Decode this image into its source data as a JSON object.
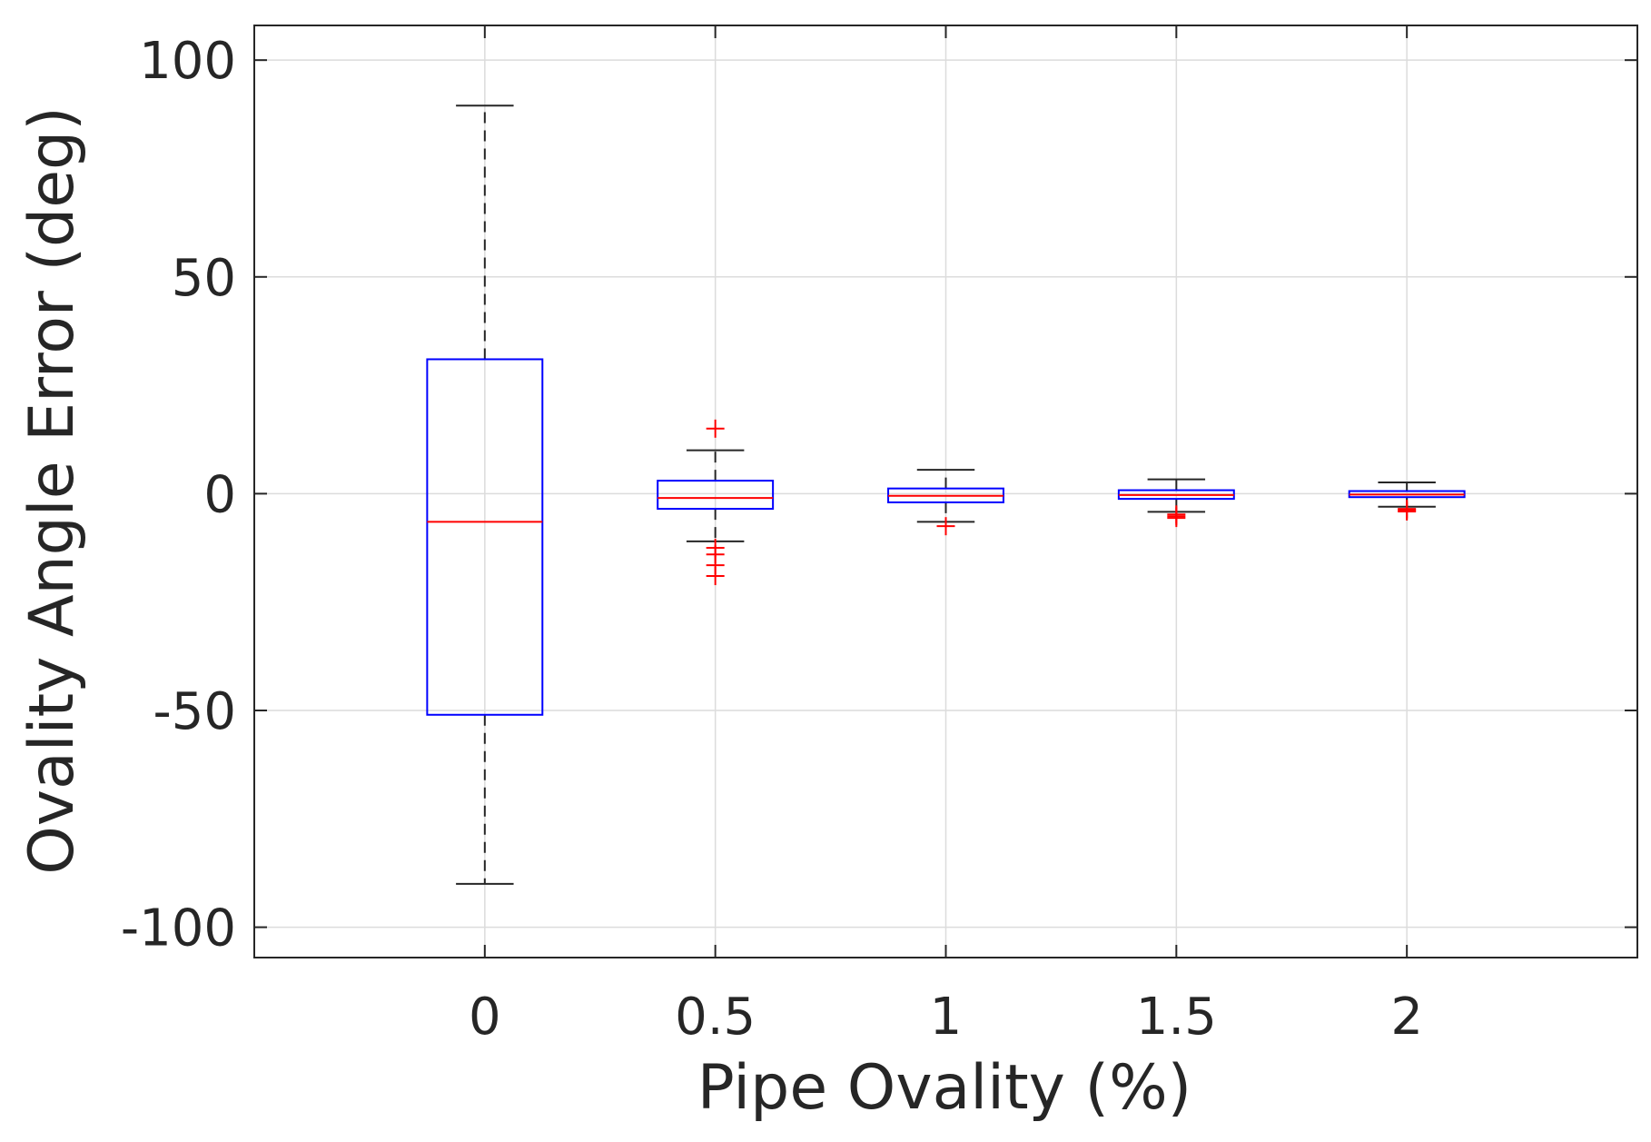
{
  "chart_data": {
    "type": "box",
    "title": "",
    "xlabel": "Pipe Ovality (%)",
    "ylabel": "Ovality Angle Error (deg)",
    "ylim": [
      -107,
      108
    ],
    "yticks": [
      -100,
      -50,
      0,
      50,
      100
    ],
    "ytick_labels": [
      "-100",
      "-50",
      "0",
      "50",
      "100"
    ],
    "grid": true,
    "categories": [
      "0",
      "0.5",
      "1",
      "1.5",
      "2"
    ],
    "boxes": [
      {
        "category": "0",
        "whisker_low": -90,
        "q1": -51,
        "median": -6.5,
        "q3": 31,
        "whisker_high": 89.5,
        "outliers": []
      },
      {
        "category": "0.5",
        "whisker_low": -11,
        "q1": -3.5,
        "median": -1,
        "q3": 3,
        "whisker_high": 10,
        "outliers": [
          15,
          -12.5,
          -14,
          -16.5,
          -19
        ]
      },
      {
        "category": "1",
        "whisker_low": -6.5,
        "q1": -2,
        "median": -0.5,
        "q3": 1.2,
        "whisker_high": 5.5,
        "outliers": [
          -7.5
        ]
      },
      {
        "category": "1.5",
        "whisker_low": -4.2,
        "q1": -1.2,
        "median": -0.3,
        "q3": 0.8,
        "whisker_high": 3.3,
        "outliers": [
          -4.8,
          -5.2,
          -5.6
        ]
      },
      {
        "category": "2",
        "whisker_low": -3,
        "q1": -0.8,
        "median": -0.2,
        "q3": 0.6,
        "whisker_high": 2.6,
        "outliers": [
          -3.5,
          -3.8,
          -4.1
        ]
      }
    ],
    "colors": {
      "box": "#0000ff",
      "median": "#ff0000",
      "outlier": "#ff0000",
      "whisker": "#262626",
      "grid": "#dcdcdc",
      "axis": "#262626"
    }
  }
}
